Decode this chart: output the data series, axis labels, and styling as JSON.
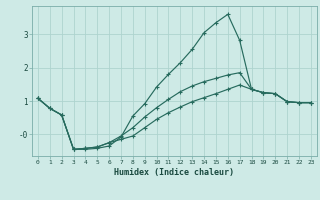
{
  "xlabel": "Humidex (Indice chaleur)",
  "background_color": "#ceeae6",
  "grid_color": "#aed4cf",
  "line_color": "#276b5e",
  "xlim": [
    -0.5,
    23.5
  ],
  "ylim": [
    -0.65,
    3.85
  ],
  "yticks": [
    0,
    1,
    2,
    3
  ],
  "ytick_labels": [
    "-0",
    "1",
    "2",
    "3"
  ],
  "xticks": [
    0,
    1,
    2,
    3,
    4,
    5,
    6,
    7,
    8,
    9,
    10,
    11,
    12,
    13,
    14,
    15,
    16,
    17,
    18,
    19,
    20,
    21,
    22,
    23
  ],
  "line1_x": [
    0,
    1,
    2,
    3,
    4,
    5,
    6,
    7,
    8,
    9,
    10,
    11,
    12,
    13,
    14,
    15,
    16,
    17,
    18,
    19,
    20,
    21,
    22,
    23
  ],
  "line1_y": [
    1.08,
    0.78,
    0.58,
    -0.45,
    -0.45,
    -0.42,
    -0.35,
    -0.08,
    0.55,
    0.92,
    1.42,
    1.8,
    2.15,
    2.55,
    3.05,
    3.35,
    3.6,
    2.82,
    1.35,
    1.25,
    1.22,
    0.98,
    0.95,
    0.95
  ],
  "line2_x": [
    0,
    1,
    2,
    3,
    4,
    5,
    6,
    7,
    8,
    9,
    10,
    11,
    12,
    13,
    14,
    15,
    16,
    17,
    18,
    19,
    20,
    21,
    22,
    23
  ],
  "line2_y": [
    1.08,
    0.78,
    0.58,
    -0.45,
    -0.42,
    -0.38,
    -0.25,
    -0.05,
    0.2,
    0.52,
    0.8,
    1.05,
    1.28,
    1.45,
    1.58,
    1.68,
    1.78,
    1.85,
    1.35,
    1.25,
    1.22,
    0.98,
    0.95,
    0.95
  ],
  "line3_x": [
    0,
    1,
    2,
    3,
    4,
    5,
    6,
    7,
    8,
    9,
    10,
    11,
    12,
    13,
    14,
    15,
    16,
    17,
    18,
    19,
    20,
    21,
    22,
    23
  ],
  "line3_y": [
    1.08,
    0.78,
    0.58,
    -0.45,
    -0.42,
    -0.38,
    -0.25,
    -0.15,
    -0.05,
    0.2,
    0.45,
    0.65,
    0.82,
    0.98,
    1.1,
    1.22,
    1.35,
    1.48,
    1.35,
    1.25,
    1.22,
    0.98,
    0.95,
    0.95
  ]
}
